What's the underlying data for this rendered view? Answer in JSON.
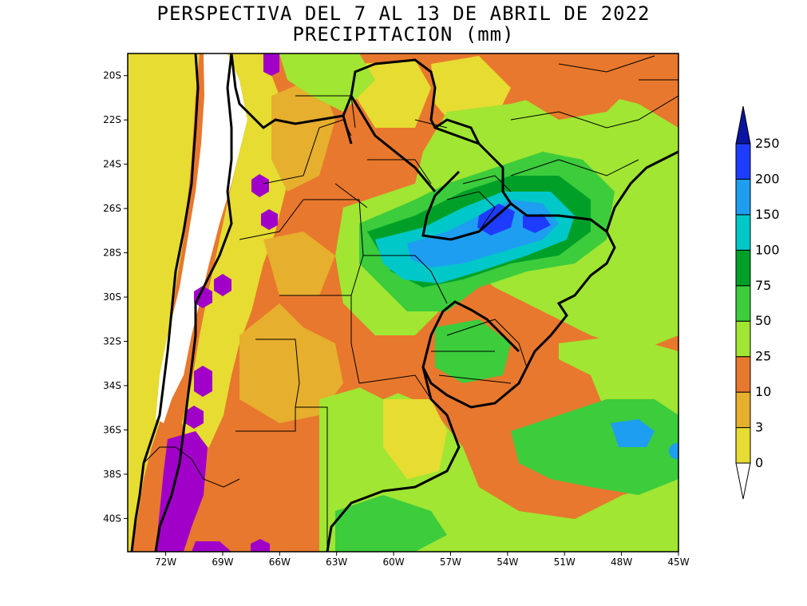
{
  "title": {
    "line1": "PERSPECTIVA DEL 7 AL 13 DE ABRIL DE 2022",
    "line2": "PRECIPITACION (mm)"
  },
  "map": {
    "lon_range": [
      -74,
      -45
    ],
    "lat_range": [
      -41.5,
      -19
    ],
    "lon_ticks": [
      "72W",
      "69W",
      "66W",
      "63W",
      "60W",
      "57W",
      "54W",
      "51W",
      "48W",
      "45W"
    ],
    "lat_ticks": [
      "20S",
      "22S",
      "24S",
      "26S",
      "28S",
      "30S",
      "32S",
      "34S",
      "36S",
      "38S",
      "40S"
    ]
  },
  "colorbar": {
    "labels": [
      "0",
      "3",
      "10",
      "25",
      "50",
      "75",
      "100",
      "150",
      "200",
      "250"
    ],
    "colors": {
      "c0": "#e6dc32",
      "c3": "#e6af2d",
      "c10": "#e8782d",
      "c25": "#a0e632",
      "c50": "#3ccc3c",
      "c75": "#00a028",
      "c100": "#00c8c8",
      "c150": "#1e9ef0",
      "c200": "#1e3cff",
      "c250": "#0a14a0",
      "over": "#a000c8"
    }
  }
}
